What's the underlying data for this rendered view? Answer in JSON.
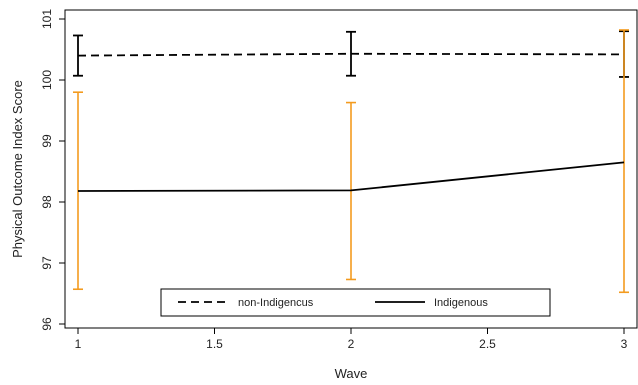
{
  "chart_data": {
    "type": "line",
    "title": "",
    "xlabel": "Wave",
    "ylabel": "Physical Outcome Index Score",
    "xlim": [
      1,
      3
    ],
    "ylim": [
      96,
      101
    ],
    "x_ticks": [
      "1",
      "1.5",
      "2",
      "2.5",
      "3"
    ],
    "y_ticks": [
      "96",
      "97",
      "98",
      "99",
      "100",
      "101"
    ],
    "grid": false,
    "legend_position": "bottom",
    "series": [
      {
        "name": "non-Indigencus",
        "style": "dashed",
        "color": "#000000",
        "errorbar_color": "#000000",
        "points": [
          {
            "x": 1,
            "y": 100.4,
            "lo": 100.07,
            "hi": 100.73
          },
          {
            "x": 2,
            "y": 100.43,
            "lo": 100.07,
            "hi": 100.79
          },
          {
            "x": 3,
            "y": 100.42,
            "lo": 100.05,
            "hi": 100.8
          }
        ]
      },
      {
        "name": "Indigenous",
        "style": "solid",
        "color": "#000000",
        "errorbar_color": "#f39b1f",
        "points": [
          {
            "x": 1,
            "y": 98.18,
            "lo": 96.57,
            "hi": 99.8
          },
          {
            "x": 2,
            "y": 98.19,
            "lo": 96.73,
            "hi": 99.63
          },
          {
            "x": 3,
            "y": 98.65,
            "lo": 96.52,
            "hi": 100.82
          }
        ]
      }
    ]
  }
}
